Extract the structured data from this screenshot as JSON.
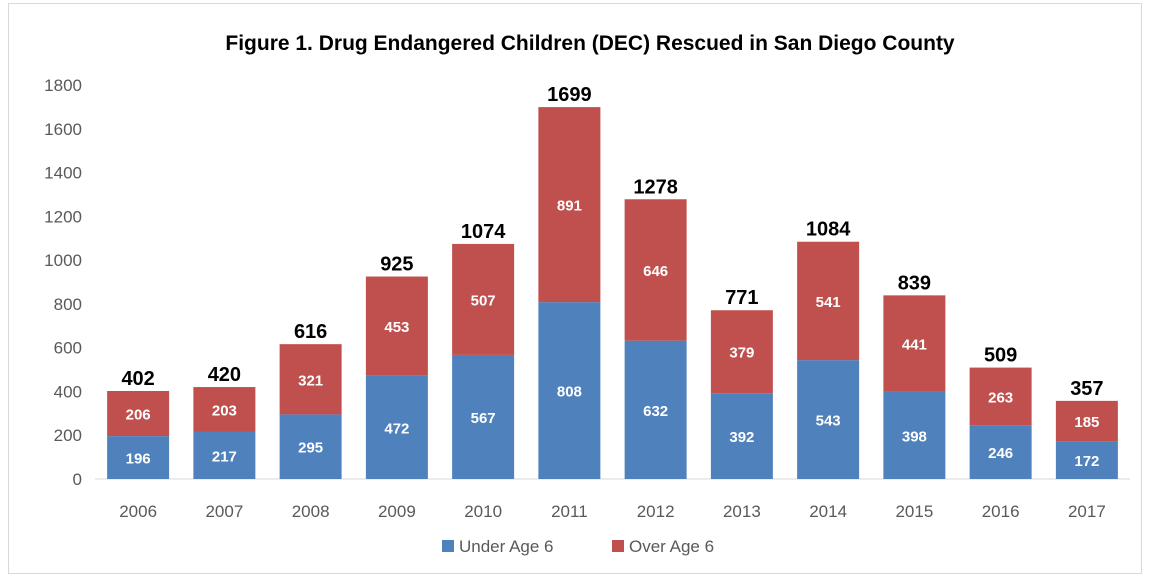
{
  "chart_data": {
    "type": "bar",
    "stacked": true,
    "title": "Figure 1. Drug Endangered Children (DEC) Rescued in San Diego County",
    "categories": [
      "2006",
      "2007",
      "2008",
      "2009",
      "2010",
      "2011",
      "2012",
      "2013",
      "2014",
      "2015",
      "2016",
      "2017"
    ],
    "series": [
      {
        "name": "Under Age 6",
        "color": "#4f81bd",
        "values": [
          196,
          217,
          295,
          472,
          567,
          808,
          632,
          392,
          543,
          398,
          246,
          172
        ]
      },
      {
        "name": "Over Age 6",
        "color": "#c0504d",
        "values": [
          206,
          203,
          321,
          453,
          507,
          891,
          646,
          379,
          541,
          441,
          263,
          185
        ]
      }
    ],
    "totals": [
      402,
      420,
      616,
      925,
      1074,
      1699,
      1278,
      771,
      1084,
      839,
      509,
      357
    ],
    "ylim": [
      0,
      1800
    ],
    "yticks": [
      0,
      200,
      400,
      600,
      800,
      1000,
      1200,
      1400,
      1600,
      1800
    ],
    "xlabel": "",
    "ylabel": "",
    "grid": false,
    "legend_position": "bottom"
  }
}
